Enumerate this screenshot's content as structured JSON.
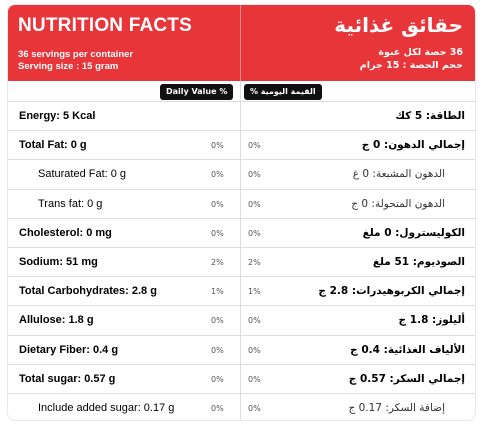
{
  "header": {
    "title_en": "NUTRITION FACTS",
    "title_ar": "حقائق غذائية",
    "servings_en": "36 servings per container",
    "serving_size_en": "Serving size : 15 gram",
    "servings_ar": "36 حصة لكل عبوة",
    "serving_size_ar": "حجم الحصة : 15 جرام"
  },
  "daily_value_en": "Daily Value %",
  "daily_value_ar": "القيمة اليومية %",
  "rows": [
    {
      "en": "Energy: 5 Kcal",
      "ar": "الطاقة: 5 كك"
    },
    {
      "en": "Total Fat: 0 g",
      "ar": "إجمالي الدهون: 0 ج",
      "dv_en": "0%",
      "dv_ar": "0%",
      "sub": [
        {
          "en": "Saturated Fat: 0 g",
          "ar": "الدهون المشبعة: 0 غ",
          "dv_en": "0%",
          "dv_ar": "0%"
        },
        {
          "en": "Trans fat: 0 g",
          "ar": "الدهون المتحولة: 0 ج",
          "dv_en": "0%",
          "dv_ar": "0%"
        }
      ]
    },
    {
      "en": "Cholesterol: 0 mg",
      "ar": "الكوليسترول: 0 ملغ",
      "dv_en": "0%",
      "dv_ar": "0%"
    },
    {
      "en": "Sodium: 51 mg",
      "ar": "الصوديوم: 51 ملغ",
      "dv_en": "2%",
      "dv_ar": "2%"
    },
    {
      "en": "Total Carbohydrates: 2.8 g",
      "ar": "إجمالي الكربوهيدرات: 2.8 ج",
      "dv_en": "1%",
      "dv_ar": "1%"
    },
    {
      "en": "Allulose: 1.8 g",
      "ar": "أليلوز: 1.8 ج",
      "dv_en": "0%",
      "dv_ar": "0%"
    },
    {
      "en": "Dietary Fiber: 0.4 g",
      "ar": "الألياف الغذائية: 0.4 ج",
      "dv_en": "0%",
      "dv_ar": "0%"
    },
    {
      "en": "Total sugar: 0.57 g",
      "ar": "إجمالي السكر: 0.57 ج",
      "dv_en": "0%",
      "dv_ar": "0%",
      "sub": [
        {
          "en": "Include added sugar: 0.17 g",
          "ar": "إضافة السكر: 0.17 ج",
          "dv_en": "0%",
          "dv_ar": "0%"
        }
      ]
    }
  ]
}
